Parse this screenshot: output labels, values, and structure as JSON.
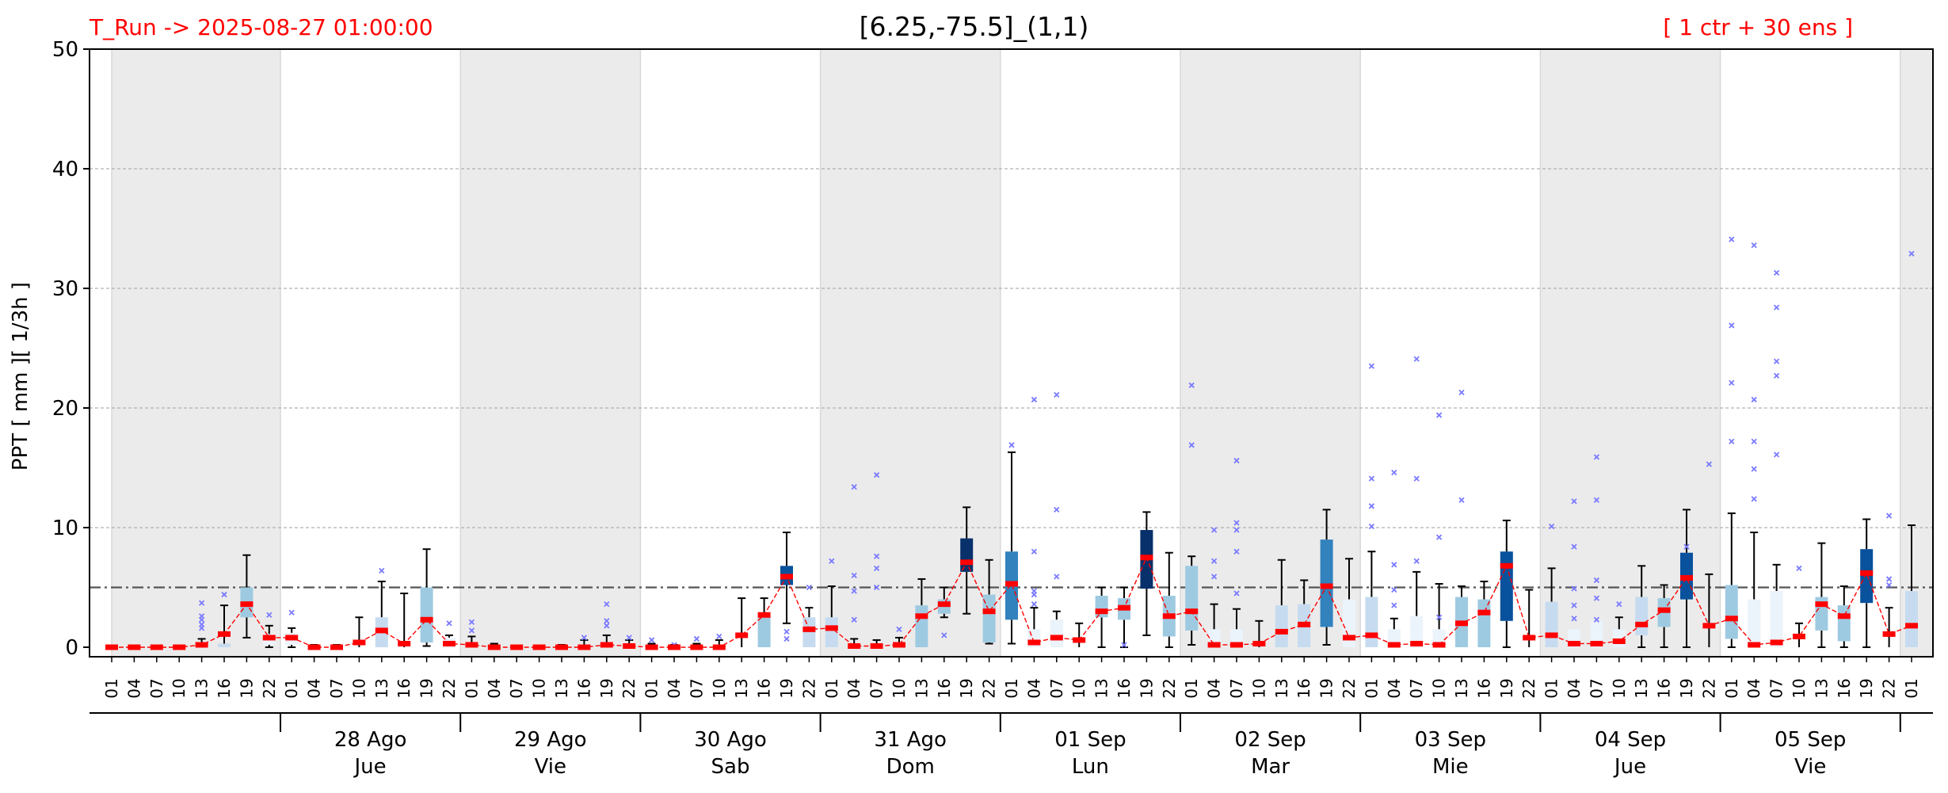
{
  "header": {
    "run_label": "T_Run -> 2025-08-27  01:00:00",
    "title": "[6.25,-75.5]_(1,1)",
    "ens_label": "[ 1 ctr + 30 ens ]"
  },
  "chart_data": {
    "type": "box",
    "title": "[6.25,-75.5]_(1,1)",
    "ylabel": "PPT  [ mm ][ 1/3h ]",
    "ylim": [
      0,
      50
    ],
    "yticks": [
      0,
      10,
      20,
      30,
      40,
      50
    ],
    "threshold": 5,
    "grid": true,
    "hours": [
      "01",
      "04",
      "07",
      "10",
      "13",
      "16",
      "19",
      "22"
    ],
    "day_groups": [
      {
        "date": "",
        "weekday": "",
        "shaded": true,
        "first": 0,
        "last": 7
      },
      {
        "date": "28 Ago",
        "weekday": "Jue",
        "shaded": false,
        "first": 8,
        "last": 15
      },
      {
        "date": "29 Ago",
        "weekday": "Vie",
        "shaded": true,
        "first": 16,
        "last": 23
      },
      {
        "date": "30 Ago",
        "weekday": "Sab",
        "shaded": false,
        "first": 24,
        "last": 31
      },
      {
        "date": "31 Ago",
        "weekday": "Dom",
        "shaded": true,
        "first": 32,
        "last": 39
      },
      {
        "date": "01 Sep",
        "weekday": "Lun",
        "shaded": false,
        "first": 40,
        "last": 47
      },
      {
        "date": "02 Sep",
        "weekday": "Mar",
        "shaded": true,
        "first": 48,
        "last": 55
      },
      {
        "date": "03 Sep",
        "weekday": "Mie",
        "shaded": false,
        "first": 56,
        "last": 63
      },
      {
        "date": "04 Sep",
        "weekday": "Jue",
        "shaded": true,
        "first": 64,
        "last": 71
      },
      {
        "date": "05 Sep",
        "weekday": "Vie",
        "shaded": false,
        "first": 72,
        "last": 79
      },
      {
        "date": "",
        "weekday": "",
        "shaded": true,
        "first": 80,
        "last": 80
      }
    ],
    "x": [
      "01",
      "04",
      "07",
      "10",
      "13",
      "16",
      "19",
      "22",
      "01",
      "04",
      "07",
      "10",
      "13",
      "16",
      "19",
      "22",
      "01",
      "04",
      "07",
      "10",
      "13",
      "16",
      "19",
      "22",
      "01",
      "04",
      "07",
      "10",
      "13",
      "16",
      "19",
      "22",
      "01",
      "04",
      "07",
      "10",
      "13",
      "16",
      "19",
      "22",
      "01",
      "04",
      "07",
      "10",
      "13",
      "16",
      "19",
      "22",
      "01",
      "04",
      "07",
      "10",
      "13",
      "16",
      "19",
      "22",
      "01",
      "04",
      "07",
      "10",
      "13",
      "16",
      "19",
      "22",
      "01",
      "04",
      "07",
      "10",
      "13",
      "16",
      "19",
      "22",
      "01",
      "04",
      "07",
      "10",
      "13",
      "16",
      "19",
      "22",
      "01"
    ],
    "median": [
      0,
      0,
      0,
      0,
      0.2,
      1.1,
      3.6,
      0.8,
      0.8,
      0,
      0,
      0.4,
      1.4,
      0.3,
      2.3,
      0.3,
      0.2,
      0,
      0,
      0,
      0,
      0,
      0.2,
      0.1,
      0,
      0,
      0,
      0,
      1,
      2.7,
      5.9,
      1.5,
      1.6,
      0.1,
      0.1,
      0.2,
      2.6,
      3.6,
      7.1,
      3,
      5.3,
      0.4,
      0.8,
      0.6,
      3,
      3.3,
      7.5,
      2.6,
      3,
      0.2,
      0.2,
      0.3,
      1.3,
      1.9,
      5.1,
      0.8,
      1,
      0.2,
      0.3,
      0.2,
      2,
      2.9,
      6.8,
      0.8,
      1,
      0.3,
      0.3,
      0.5,
      1.9,
      3.1,
      5.8,
      1.8,
      2.4,
      0.2,
      0.4,
      0.9,
      3.6,
      2.6,
      6.2,
      1.1,
      1.8
    ],
    "q1": [
      0,
      0,
      0,
      0,
      0,
      0,
      2.5,
      0.2,
      0.2,
      0,
      0,
      0,
      0,
      0,
      0.4,
      0,
      0,
      0,
      0,
      0,
      0,
      0,
      0,
      0,
      0,
      0,
      0,
      0,
      0,
      0,
      5.2,
      0,
      0,
      0,
      0,
      0,
      0,
      2.8,
      6.3,
      0.4,
      2.3,
      0,
      0,
      0,
      2.5,
      2.3,
      4.9,
      0.9,
      1.4,
      0,
      0,
      0,
      0,
      0,
      1.7,
      0,
      0,
      0,
      0,
      0,
      0,
      0,
      2.2,
      0,
      0,
      0,
      0,
      0,
      1,
      1.7,
      4,
      0,
      0.7,
      0,
      0,
      0,
      1.4,
      0.5,
      3.7,
      0,
      0
    ],
    "q3": [
      0,
      0,
      0,
      0,
      0,
      0.3,
      5,
      1.1,
      1.2,
      0,
      0,
      0,
      2.5,
      0,
      5,
      0.8,
      0.3,
      0,
      0,
      0,
      0,
      0,
      0.3,
      0.3,
      0,
      0,
      0,
      0,
      0,
      2.5,
      6.8,
      2.5,
      2.5,
      0,
      0,
      0,
      3.5,
      4,
      9.1,
      4.4,
      8,
      1.5,
      2.3,
      0,
      4.3,
      4.1,
      9.8,
      4.3,
      6.8,
      1.5,
      1.5,
      0,
      3.5,
      3.6,
      9,
      4,
      4.2,
      1.5,
      2.6,
      1.5,
      4.2,
      4,
      8,
      0,
      3.8,
      1.5,
      2.2,
      1.5,
      4.2,
      4.1,
      7.9,
      0,
      5.2,
      4,
      4.7,
      0,
      4.2,
      3.5,
      8.2,
      0,
      4.7
    ],
    "whisker_low": [
      0,
      0,
      0,
      0,
      0,
      0,
      0.8,
      0,
      0,
      0,
      0,
      0,
      0,
      0,
      0.1,
      0,
      0,
      0,
      0,
      0,
      0,
      0,
      0,
      0,
      0,
      0,
      0,
      0,
      0,
      0.2,
      2,
      0,
      0,
      0,
      0,
      0,
      0.3,
      2.5,
      2.8,
      0.3,
      0.3,
      0,
      0,
      0,
      0,
      0,
      1,
      0,
      0.2,
      0,
      0,
      0,
      0,
      0,
      0.2,
      0,
      0,
      0,
      0,
      0,
      0,
      0,
      0,
      0,
      0,
      0,
      0,
      0,
      0,
      0,
      0,
      0,
      0,
      0,
      0,
      0,
      0,
      0,
      0,
      0,
      0
    ],
    "whisker_high": [
      0,
      0,
      0,
      0,
      0.7,
      3.5,
      7.7,
      1.8,
      1.6,
      0.2,
      0.2,
      2.5,
      5.5,
      4.5,
      8.2,
      1,
      0.9,
      0.3,
      0,
      0,
      0.2,
      0.6,
      1,
      0.6,
      0.3,
      0.2,
      0.3,
      0.6,
      4.1,
      4.1,
      9.6,
      3.3,
      5.1,
      0.7,
      0.6,
      0.8,
      5.7,
      5,
      11.7,
      7.3,
      16.3,
      3.3,
      3,
      2,
      5,
      5,
      11.3,
      7.9,
      7.6,
      3.6,
      3.2,
      2.2,
      7.3,
      5.6,
      11.5,
      7.4,
      8,
      2.4,
      6.3,
      5.3,
      5.1,
      5.5,
      10.6,
      4.8,
      6.6,
      1.5,
      1.7,
      2.5,
      6.8,
      5.2,
      11.5,
      6.1,
      11.2,
      9.6,
      6.9,
      2,
      8.7,
      5.1,
      10.7,
      3.3,
      10.2
    ],
    "outliers": [
      {
        "i": 4,
        "v": 1.6
      },
      {
        "i": 4,
        "v": 1.9
      },
      {
        "i": 4,
        "v": 2.3
      },
      {
        "i": 4,
        "v": 2.6
      },
      {
        "i": 4,
        "v": 3.7
      },
      {
        "i": 5,
        "v": 4.4
      },
      {
        "i": 7,
        "v": 2.7
      },
      {
        "i": 8,
        "v": 2.9
      },
      {
        "i": 12,
        "v": 6.4
      },
      {
        "i": 15,
        "v": 2
      },
      {
        "i": 16,
        "v": 1.4
      },
      {
        "i": 16,
        "v": 2.1
      },
      {
        "i": 21,
        "v": 0.8
      },
      {
        "i": 22,
        "v": 1.8
      },
      {
        "i": 22,
        "v": 2.2
      },
      {
        "i": 22,
        "v": 3.6
      },
      {
        "i": 23,
        "v": 0.8
      },
      {
        "i": 24,
        "v": 0.6
      },
      {
        "i": 25,
        "v": 0.2
      },
      {
        "i": 26,
        "v": 0.7
      },
      {
        "i": 27,
        "v": 0.9
      },
      {
        "i": 30,
        "v": 0.7
      },
      {
        "i": 30,
        "v": 1.3
      },
      {
        "i": 31,
        "v": 5
      },
      {
        "i": 32,
        "v": 7.2
      },
      {
        "i": 33,
        "v": 2.3
      },
      {
        "i": 33,
        "v": 4.7
      },
      {
        "i": 33,
        "v": 6
      },
      {
        "i": 33,
        "v": 13.4
      },
      {
        "i": 34,
        "v": 5
      },
      {
        "i": 34,
        "v": 6.6
      },
      {
        "i": 34,
        "v": 7.6
      },
      {
        "i": 34,
        "v": 14.4
      },
      {
        "i": 35,
        "v": 1.5
      },
      {
        "i": 37,
        "v": 1
      },
      {
        "i": 40,
        "v": 16.9
      },
      {
        "i": 41,
        "v": 3.6
      },
      {
        "i": 41,
        "v": 4.4
      },
      {
        "i": 41,
        "v": 4.7
      },
      {
        "i": 41,
        "v": 8
      },
      {
        "i": 41,
        "v": 20.7
      },
      {
        "i": 42,
        "v": 5.9
      },
      {
        "i": 42,
        "v": 11.5
      },
      {
        "i": 42,
        "v": 21.1
      },
      {
        "i": 45,
        "v": 0.2
      },
      {
        "i": 48,
        "v": 16.9
      },
      {
        "i": 48,
        "v": 21.9
      },
      {
        "i": 49,
        "v": 5.9
      },
      {
        "i": 49,
        "v": 7.2
      },
      {
        "i": 49,
        "v": 9.8
      },
      {
        "i": 50,
        "v": 4.5
      },
      {
        "i": 50,
        "v": 8
      },
      {
        "i": 50,
        "v": 9.8
      },
      {
        "i": 50,
        "v": 10.4
      },
      {
        "i": 50,
        "v": 15.6
      },
      {
        "i": 56,
        "v": 10.1
      },
      {
        "i": 56,
        "v": 11.8
      },
      {
        "i": 56,
        "v": 14.1
      },
      {
        "i": 56,
        "v": 23.5
      },
      {
        "i": 57,
        "v": 3.5
      },
      {
        "i": 57,
        "v": 4.8
      },
      {
        "i": 57,
        "v": 6.9
      },
      {
        "i": 57,
        "v": 14.6
      },
      {
        "i": 58,
        "v": 7.2
      },
      {
        "i": 58,
        "v": 14.1
      },
      {
        "i": 58,
        "v": 24.1
      },
      {
        "i": 59,
        "v": 2.5
      },
      {
        "i": 59,
        "v": 9.2
      },
      {
        "i": 59,
        "v": 19.4
      },
      {
        "i": 60,
        "v": 12.3
      },
      {
        "i": 60,
        "v": 21.3
      },
      {
        "i": 64,
        "v": 10.1
      },
      {
        "i": 65,
        "v": 2.4
      },
      {
        "i": 65,
        "v": 3.5
      },
      {
        "i": 65,
        "v": 4.9
      },
      {
        "i": 65,
        "v": 8.4
      },
      {
        "i": 65,
        "v": 12.2
      },
      {
        "i": 66,
        "v": 2.3
      },
      {
        "i": 66,
        "v": 4.1
      },
      {
        "i": 66,
        "v": 5.6
      },
      {
        "i": 66,
        "v": 12.3
      },
      {
        "i": 66,
        "v": 15.9
      },
      {
        "i": 67,
        "v": 3.6
      },
      {
        "i": 70,
        "v": 8.4
      },
      {
        "i": 71,
        "v": 15.3
      },
      {
        "i": 72,
        "v": 17.2
      },
      {
        "i": 72,
        "v": 22.1
      },
      {
        "i": 72,
        "v": 26.9
      },
      {
        "i": 72,
        "v": 34.1
      },
      {
        "i": 73,
        "v": 12.4
      },
      {
        "i": 73,
        "v": 14.9
      },
      {
        "i": 73,
        "v": 17.2
      },
      {
        "i": 73,
        "v": 20.7
      },
      {
        "i": 73,
        "v": 33.6
      },
      {
        "i": 74,
        "v": 16.1
      },
      {
        "i": 74,
        "v": 22.7
      },
      {
        "i": 74,
        "v": 23.9
      },
      {
        "i": 74,
        "v": 28.4
      },
      {
        "i": 74,
        "v": 31.3
      },
      {
        "i": 75,
        "v": 6.6
      },
      {
        "i": 79,
        "v": 5.2
      },
      {
        "i": 79,
        "v": 5.7
      },
      {
        "i": 79,
        "v": 11
      },
      {
        "i": 80,
        "v": 32.9
      }
    ],
    "colors": {
      "weekend_shade": "#ebebeb",
      "ctrl_line": "#ff0000",
      "outlier": "#7a7aff",
      "threshold_line": "#555555",
      "box_scale": [
        "#ebf3fb",
        "#c6dbef",
        "#9ecae1",
        "#3182bd",
        "#08519c",
        "#08306b"
      ]
    }
  }
}
